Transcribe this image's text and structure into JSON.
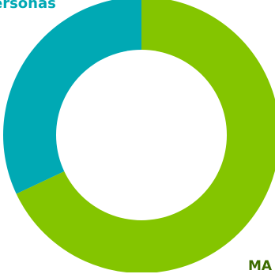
{
  "chart_data": {
    "type": "pie",
    "variant": "donut",
    "slices": [
      {
        "label": "MA",
        "value": 68,
        "color": "#84c500"
      },
      {
        "label": "ersonas",
        "value": 32,
        "color": "#00a9b4"
      }
    ],
    "start_angle_deg": 0,
    "direction": "clockwise"
  },
  "labels": {
    "top": "ersonas",
    "bottom": "MA"
  },
  "colors": {
    "background": "#ffffff",
    "hole": "#ffffff"
  }
}
